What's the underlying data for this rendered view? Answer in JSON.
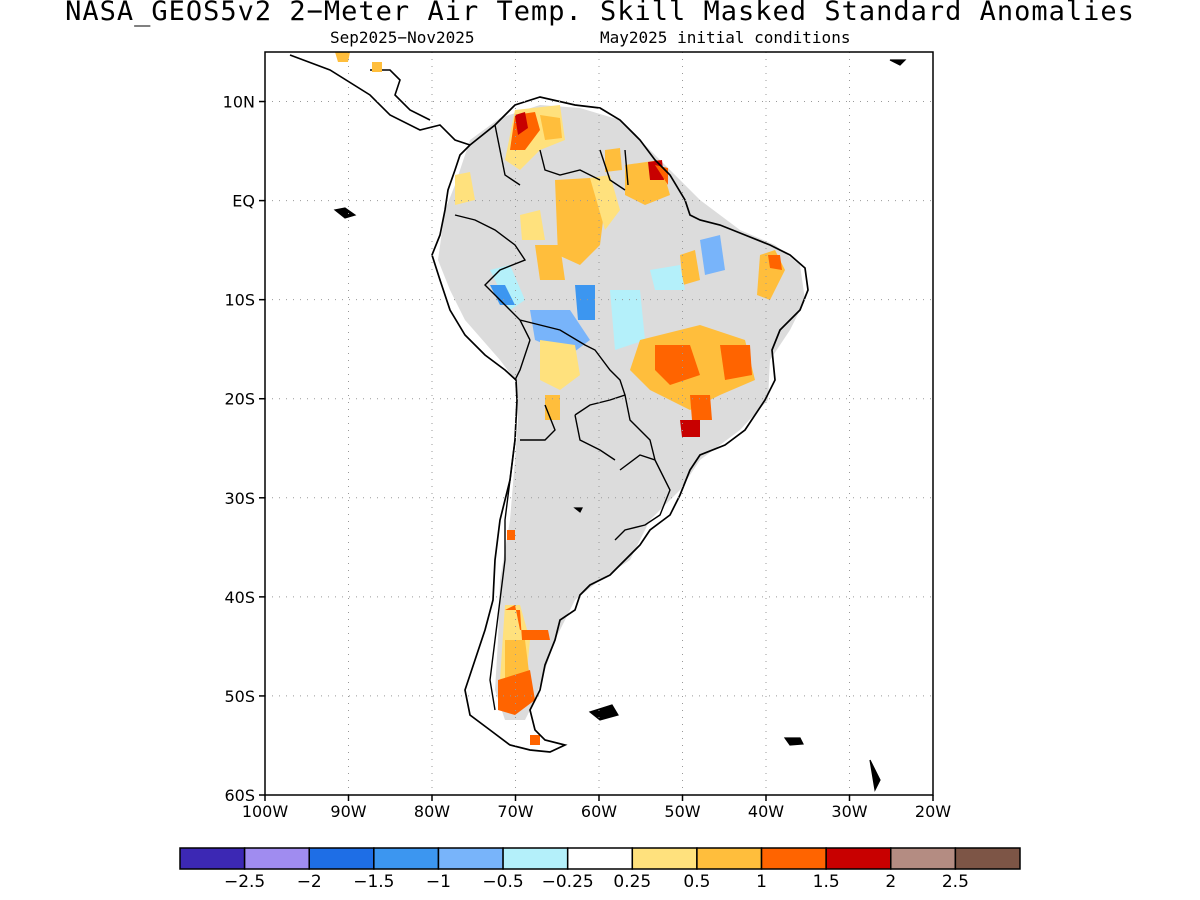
{
  "header": {
    "title": "NASA_GEOS5v2 2−Meter Air Temp. Skill Masked Standard Anomalies",
    "period": "Sep2025−Nov2025",
    "init": "May2025 initial conditions"
  },
  "map": {
    "region": "South America",
    "lon_range": [
      -100,
      -20
    ],
    "lat_range": [
      -60,
      15
    ],
    "lat_ticks": [
      {
        "value": 10,
        "label": "10N"
      },
      {
        "value": 0,
        "label": "EQ"
      },
      {
        "value": -10,
        "label": "10S"
      },
      {
        "value": -20,
        "label": "20S"
      },
      {
        "value": -30,
        "label": "30S"
      },
      {
        "value": -40,
        "label": "40S"
      },
      {
        "value": -50,
        "label": "50S"
      },
      {
        "value": -60,
        "label": "60S"
      }
    ],
    "lon_ticks": [
      {
        "value": -100,
        "label": "100W"
      },
      {
        "value": -90,
        "label": "90W"
      },
      {
        "value": -80,
        "label": "80W"
      },
      {
        "value": -70,
        "label": "70W"
      },
      {
        "value": -60,
        "label": "60W"
      },
      {
        "value": -50,
        "label": "50W"
      },
      {
        "value": -40,
        "label": "40W"
      },
      {
        "value": -30,
        "label": "30W"
      },
      {
        "value": -20,
        "label": "20W"
      }
    ],
    "masked_color": "#dcdcdc",
    "coast_color": "#000000",
    "grid": true
  },
  "colorbar": {
    "colors": [
      "#3c28b4",
      "#a08cf0",
      "#1e6ee6",
      "#3c96f0",
      "#78b4fa",
      "#b4f0fa",
      "#ffffff",
      "#ffe17d",
      "#ffbe3c",
      "#ff6400",
      "#c80000",
      "#b48c82",
      "#7d5546"
    ],
    "labels": [
      "−2.5",
      "−2",
      "−1.5",
      "−1",
      "−0.5",
      "−0.25",
      "0.25",
      "0.5",
      "1",
      "1.5",
      "2",
      "2.5"
    ]
  }
}
